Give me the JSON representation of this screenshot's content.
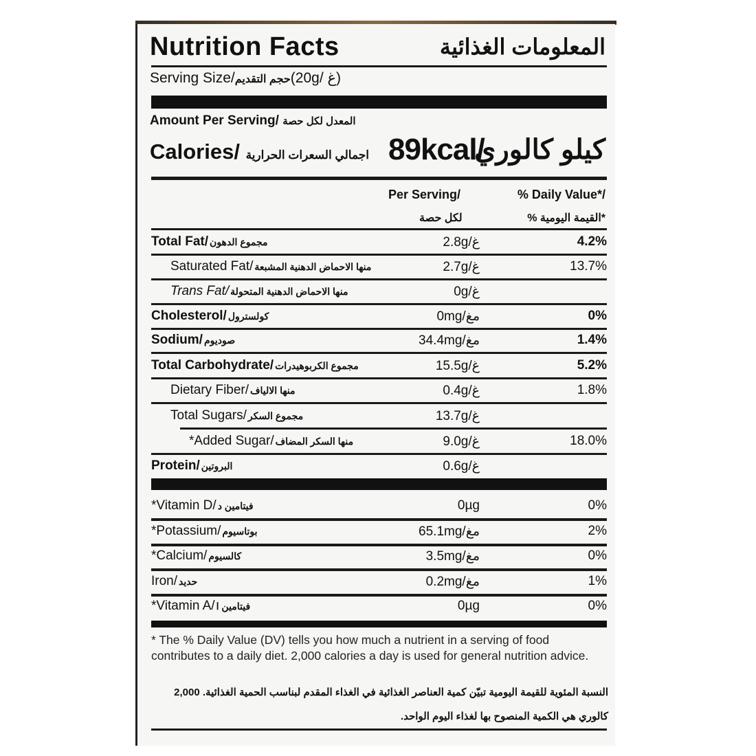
{
  "header": {
    "title": "Nutrition Facts",
    "title_ar": "المعلومات الغذائية",
    "serving_size": "Serving Size/",
    "serving_size_ar": "حجم التقديم",
    "serving_value": "(20g/ غ)",
    "amount_per_serving": "Amount Per Serving/",
    "amount_per_serving_ar": "المعدل لكل حصة",
    "calories": "Calories/",
    "calories_ar": "اجمالي السعرات الحرارية",
    "calories_value": "89kcal/",
    "calories_value_ar": "كيلو كالوري"
  },
  "columns": {
    "per_serving": "Per Serving/",
    "per_serving_ar": "لكل حصة",
    "daily_value": "% Daily Value*/",
    "daily_value_ar": "*القيمة اليومية %"
  },
  "nutrients": [
    {
      "name": "Total Fat/",
      "name_ar": "مجموع الدهون",
      "amount": "2.8g/غ",
      "dv": "4.2%",
      "bold": true,
      "indent": 0
    },
    {
      "name": "Saturated Fat/",
      "name_ar": "منها الاحماض الدهنية المشبعة",
      "amount": "2.7g/غ",
      "dv": "13.7%",
      "bold": false,
      "indent": 1
    },
    {
      "name": "Trans Fat/",
      "name_ar": "منها الاحماض الدهنية المتحولة",
      "amount": "0g/غ",
      "dv": "",
      "bold": false,
      "indent": 1,
      "italic": true
    },
    {
      "name": "Cholesterol/",
      "name_ar": "كولسترول",
      "amount": "0mg/مغ",
      "dv": "0%",
      "bold": true,
      "indent": 0
    },
    {
      "name": "Sodium/",
      "name_ar": "صوديوم",
      "amount": "34.4mg/مغ",
      "dv": "1.4%",
      "bold": true,
      "indent": 0
    },
    {
      "name": "Total Carbohydrate/",
      "name_ar": "مجموع الكربوهيدرات",
      "amount": "15.5g/غ",
      "dv": "5.2%",
      "bold": true,
      "indent": 0
    },
    {
      "name": "Dietary Fiber/",
      "name_ar": "منها الالياف",
      "amount": "0.4g/غ",
      "dv": "1.8%",
      "bold": false,
      "indent": 1
    },
    {
      "name": "Total Sugars/",
      "name_ar": "مجموع السكر",
      "amount": "13.7g/غ",
      "dv": "",
      "bold": false,
      "indent": 1
    },
    {
      "name": "*Added Sugar/",
      "name_ar": "منها السكر المضاف",
      "amount": "9.0g/غ",
      "dv": "18.0%",
      "bold": false,
      "indent": 2
    },
    {
      "name": "Protein/",
      "name_ar": "البروتين",
      "amount": "0.6g/غ",
      "dv": "",
      "bold": true,
      "indent": 0
    }
  ],
  "vitamins": [
    {
      "name": "*Vitamin D/",
      "name_ar": "فيتامين د",
      "amount": "0µg",
      "dv": "0%"
    },
    {
      "name": "*Potassium/",
      "name_ar": "بوتاسيوم",
      "amount": "65.1mg/مغ",
      "dv": "2%"
    },
    {
      "name": "*Calcium/",
      "name_ar": "كالسيوم",
      "amount": "3.5mg/مغ",
      "dv": "0%"
    },
    {
      "name": "Iron/",
      "name_ar": "حديد",
      "amount": "0.2mg/مغ",
      "dv": "1%"
    },
    {
      "name": "*Vitamin A/",
      "name_ar": "فيتامين ا",
      "amount": "0µg",
      "dv": "0%"
    }
  ],
  "footnote": "* The % Daily Value (DV) tells you how much a nutrient in a serving of food contributes to a daily diet. 2,000 calories a day is used for general nutrition advice.",
  "footnote_ar": "النسبة المئوية للقيمة اليومية تبيّن كمية العناصر الغذائية في الغذاء المقدم لبناسب الحمية الغذائية. 2,000 كالوري هي الكمية المنصوح بها لغذاء اليوم الواحد."
}
